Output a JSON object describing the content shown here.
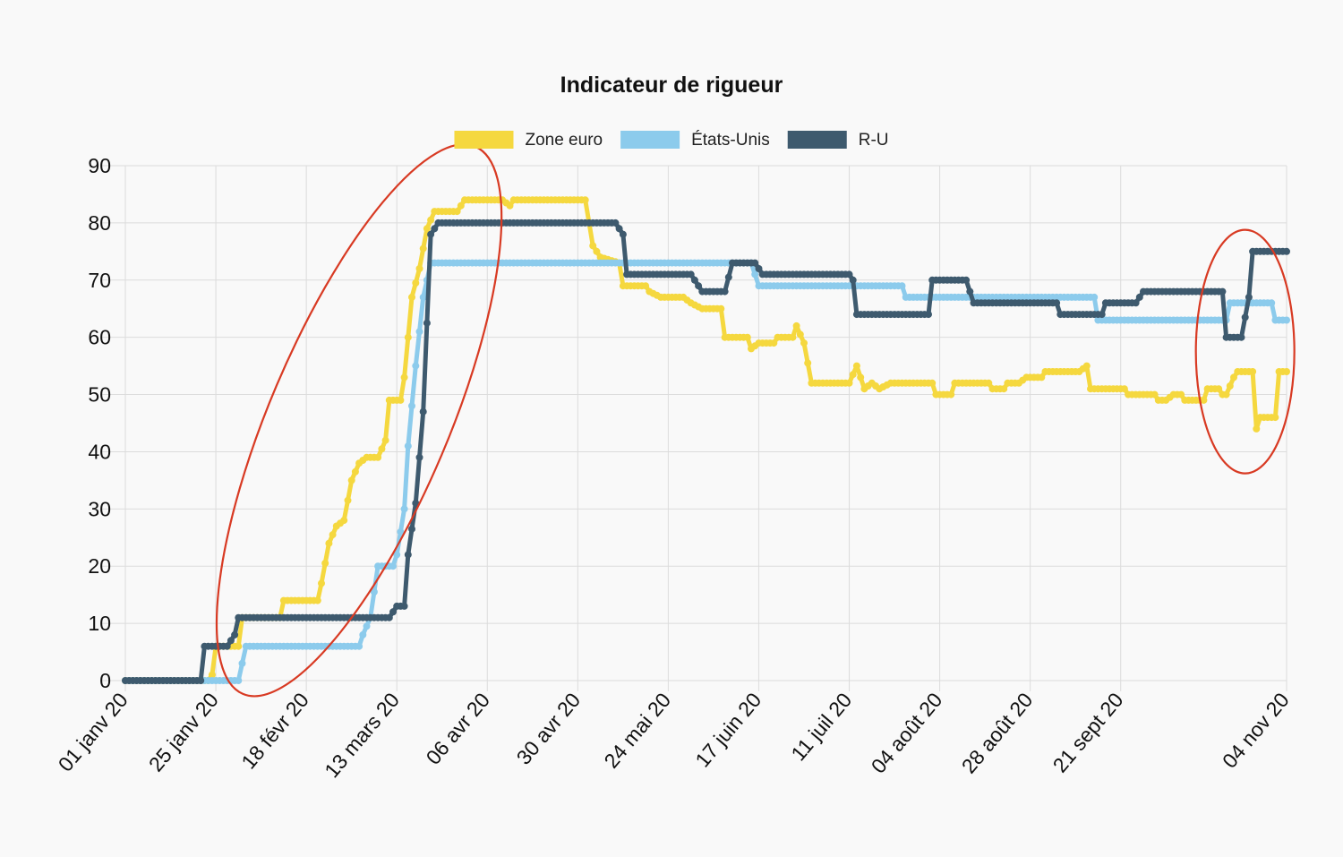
{
  "chart_data": {
    "type": "line",
    "title": "Indicateur de rigueur",
    "xlabel": "",
    "ylabel": "",
    "ylim": [
      0,
      90
    ],
    "y_ticks": [
      "0",
      "10",
      "20",
      "30",
      "40",
      "50",
      "60",
      "70",
      "80",
      "90"
    ],
    "x_ticks": [
      {
        "date": "2020-01-01",
        "label": "01 janv 20"
      },
      {
        "date": "2020-01-25",
        "label": "25 janv 20"
      },
      {
        "date": "2020-02-18",
        "label": "18 févr 20"
      },
      {
        "date": "2020-03-13",
        "label": "13 mars 20"
      },
      {
        "date": "2020-04-06",
        "label": "06 avr 20"
      },
      {
        "date": "2020-04-30",
        "label": "30 avr 20"
      },
      {
        "date": "2020-05-24",
        "label": "24 mai 20"
      },
      {
        "date": "2020-06-17",
        "label": "17 juin 20"
      },
      {
        "date": "2020-07-11",
        "label": "11 juil 20"
      },
      {
        "date": "2020-08-04",
        "label": "04 août 20"
      },
      {
        "date": "2020-08-28",
        "label": "28 août 20"
      },
      {
        "date": "2020-09-21",
        "label": "21 sept 20"
      },
      {
        "date": "2020-11-04",
        "label": "04 nov 20"
      }
    ],
    "x_range": [
      "2020-01-01",
      "2020-11-04"
    ],
    "grid": true,
    "legend_position": "top-center",
    "series": [
      {
        "name": "Zone euro",
        "color": "#f5d83f",
        "points": [
          [
            "2020-01-01",
            0
          ],
          [
            "2020-01-23",
            0
          ],
          [
            "2020-01-24",
            1
          ],
          [
            "2020-01-25",
            6
          ],
          [
            "2020-01-31",
            6
          ],
          [
            "2020-02-01",
            11
          ],
          [
            "2020-02-11",
            11
          ],
          [
            "2020-02-12",
            14
          ],
          [
            "2020-02-21",
            14
          ],
          [
            "2020-02-22",
            17
          ],
          [
            "2020-02-24",
            24
          ],
          [
            "2020-02-26",
            27
          ],
          [
            "2020-02-28",
            28
          ],
          [
            "2020-03-01",
            35
          ],
          [
            "2020-03-03",
            38
          ],
          [
            "2020-03-05",
            39
          ],
          [
            "2020-03-08",
            39
          ],
          [
            "2020-03-10",
            42
          ],
          [
            "2020-03-11",
            49
          ],
          [
            "2020-03-14",
            49
          ],
          [
            "2020-03-15",
            53
          ],
          [
            "2020-03-17",
            67
          ],
          [
            "2020-03-19",
            72
          ],
          [
            "2020-03-21",
            79
          ],
          [
            "2020-03-23",
            82
          ],
          [
            "2020-03-29",
            82
          ],
          [
            "2020-03-31",
            84
          ],
          [
            "2020-04-10",
            84
          ],
          [
            "2020-04-12",
            83
          ],
          [
            "2020-04-13",
            84
          ],
          [
            "2020-05-02",
            84
          ],
          [
            "2020-05-04",
            76
          ],
          [
            "2020-05-06",
            74
          ],
          [
            "2020-05-11",
            73
          ],
          [
            "2020-05-12",
            69
          ],
          [
            "2020-05-18",
            69
          ],
          [
            "2020-05-19",
            68
          ],
          [
            "2020-05-22",
            67
          ],
          [
            "2020-05-28",
            67
          ],
          [
            "2020-05-30",
            66
          ],
          [
            "2020-06-02",
            65
          ],
          [
            "2020-06-07",
            65
          ],
          [
            "2020-06-08",
            60
          ],
          [
            "2020-06-14",
            60
          ],
          [
            "2020-06-15",
            58
          ],
          [
            "2020-06-17",
            59
          ],
          [
            "2020-06-21",
            59
          ],
          [
            "2020-06-22",
            60
          ],
          [
            "2020-06-26",
            60
          ],
          [
            "2020-06-27",
            62
          ],
          [
            "2020-06-29",
            59
          ],
          [
            "2020-07-01",
            52
          ],
          [
            "2020-07-11",
            52
          ],
          [
            "2020-07-13",
            55
          ],
          [
            "2020-07-15",
            51
          ],
          [
            "2020-07-17",
            52
          ],
          [
            "2020-07-19",
            51
          ],
          [
            "2020-07-22",
            52
          ],
          [
            "2020-08-02",
            52
          ],
          [
            "2020-08-03",
            50
          ],
          [
            "2020-08-07",
            50
          ],
          [
            "2020-08-08",
            52
          ],
          [
            "2020-08-17",
            52
          ],
          [
            "2020-08-18",
            51
          ],
          [
            "2020-08-21",
            51
          ],
          [
            "2020-08-22",
            52
          ],
          [
            "2020-08-25",
            52
          ],
          [
            "2020-08-27",
            53
          ],
          [
            "2020-08-31",
            53
          ],
          [
            "2020-09-01",
            54
          ],
          [
            "2020-09-10",
            54
          ],
          [
            "2020-09-12",
            55
          ],
          [
            "2020-09-13",
            51
          ],
          [
            "2020-09-22",
            51
          ],
          [
            "2020-09-23",
            50
          ],
          [
            "2020-09-30",
            50
          ],
          [
            "2020-10-01",
            49
          ],
          [
            "2020-10-03",
            49
          ],
          [
            "2020-10-05",
            50
          ],
          [
            "2020-10-07",
            50
          ],
          [
            "2020-10-08",
            49
          ],
          [
            "2020-10-13",
            49
          ],
          [
            "2020-10-14",
            51
          ],
          [
            "2020-10-17",
            51
          ],
          [
            "2020-10-18",
            50
          ],
          [
            "2020-10-19",
            50
          ],
          [
            "2020-10-21",
            53
          ],
          [
            "2020-10-22",
            54
          ],
          [
            "2020-10-26",
            54
          ],
          [
            "2020-10-27",
            44
          ],
          [
            "2020-10-28",
            46
          ],
          [
            "2020-11-01",
            46
          ],
          [
            "2020-11-02",
            54
          ],
          [
            "2020-11-04",
            54
          ]
        ]
      },
      {
        "name": "États-Unis",
        "color": "#8ccbec",
        "points": [
          [
            "2020-01-01",
            0
          ],
          [
            "2020-01-31",
            0
          ],
          [
            "2020-02-02",
            6
          ],
          [
            "2020-03-03",
            6
          ],
          [
            "2020-03-04",
            8
          ],
          [
            "2020-03-06",
            11
          ],
          [
            "2020-03-08",
            20
          ],
          [
            "2020-03-12",
            20
          ],
          [
            "2020-03-13",
            22
          ],
          [
            "2020-03-15",
            30
          ],
          [
            "2020-03-16",
            41
          ],
          [
            "2020-03-18",
            55
          ],
          [
            "2020-03-20",
            67
          ],
          [
            "2020-03-22",
            73
          ],
          [
            "2020-06-15",
            73
          ],
          [
            "2020-06-17",
            69
          ],
          [
            "2020-07-14",
            69
          ],
          [
            "2020-07-15",
            69
          ],
          [
            "2020-07-25",
            69
          ],
          [
            "2020-07-26",
            67
          ],
          [
            "2020-09-14",
            67
          ],
          [
            "2020-09-15",
            63
          ],
          [
            "2020-10-19",
            63
          ],
          [
            "2020-10-20",
            66
          ],
          [
            "2020-10-31",
            66
          ],
          [
            "2020-11-01",
            63
          ],
          [
            "2020-11-04",
            63
          ]
        ]
      },
      {
        "name": "R-U",
        "color": "#3e5a6e",
        "points": [
          [
            "2020-01-01",
            0
          ],
          [
            "2020-01-21",
            0
          ],
          [
            "2020-01-22",
            6
          ],
          [
            "2020-01-28",
            6
          ],
          [
            "2020-01-30",
            8
          ],
          [
            "2020-01-31",
            11
          ],
          [
            "2020-03-10",
            11
          ],
          [
            "2020-03-11",
            11
          ],
          [
            "2020-03-13",
            13
          ],
          [
            "2020-03-15",
            13
          ],
          [
            "2020-03-16",
            22
          ],
          [
            "2020-03-18",
            31
          ],
          [
            "2020-03-20",
            47
          ],
          [
            "2020-03-22",
            78
          ],
          [
            "2020-03-24",
            80
          ],
          [
            "2020-05-10",
            80
          ],
          [
            "2020-05-12",
            78
          ],
          [
            "2020-05-13",
            71
          ],
          [
            "2020-05-30",
            71
          ],
          [
            "2020-06-01",
            69
          ],
          [
            "2020-06-02",
            68
          ],
          [
            "2020-06-08",
            68
          ],
          [
            "2020-06-10",
            73
          ],
          [
            "2020-06-16",
            73
          ],
          [
            "2020-06-18",
            71
          ],
          [
            "2020-07-11",
            71
          ],
          [
            "2020-07-12",
            70
          ],
          [
            "2020-07-13",
            64
          ],
          [
            "2020-08-01",
            64
          ],
          [
            "2020-08-02",
            70
          ],
          [
            "2020-08-11",
            70
          ],
          [
            "2020-08-13",
            66
          ],
          [
            "2020-09-04",
            66
          ],
          [
            "2020-09-05",
            64
          ],
          [
            "2020-09-16",
            64
          ],
          [
            "2020-09-17",
            66
          ],
          [
            "2020-09-25",
            66
          ],
          [
            "2020-09-27",
            68
          ],
          [
            "2020-10-18",
            68
          ],
          [
            "2020-10-19",
            60
          ],
          [
            "2020-10-23",
            60
          ],
          [
            "2020-10-25",
            67
          ],
          [
            "2020-10-26",
            75
          ],
          [
            "2020-11-04",
            75
          ]
        ]
      }
    ],
    "annotations": [
      {
        "type": "ellipse",
        "color": "#d83a23"
      },
      {
        "type": "ellipse",
        "color": "#d83a23"
      }
    ]
  }
}
